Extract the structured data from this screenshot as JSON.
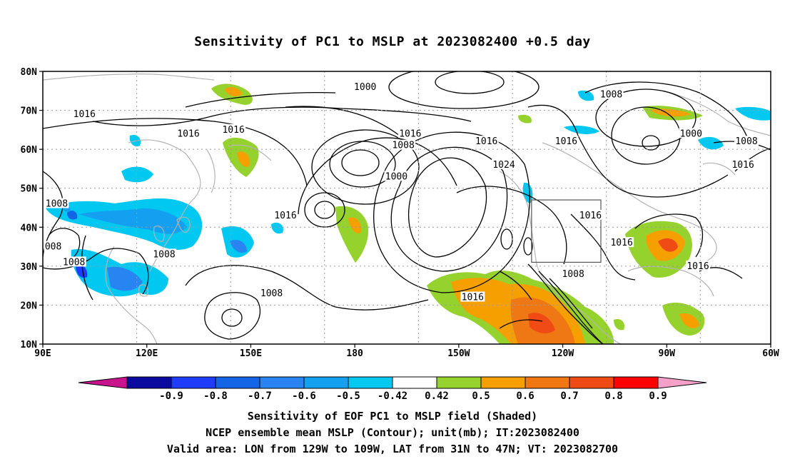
{
  "title": "Sensitivity of PC1 to MSLP at 2023082400 +0.5 day",
  "map": {
    "lat_labels": [
      "80N",
      "70N",
      "60N",
      "50N",
      "40N",
      "30N",
      "20N",
      "10N"
    ],
    "lon_labels": [
      "90E",
      "120E",
      "150E",
      "180",
      "150W",
      "120W",
      "90W",
      "60W"
    ],
    "extent": {
      "lon_min": 90,
      "lon_max": 300,
      "lat_min": 10,
      "lat_max": 80
    },
    "valid_box": {
      "lon": [
        231,
        251
      ],
      "lat": [
        31,
        47
      ]
    },
    "contour_labels": [
      {
        "text": "1000",
        "lon": 183,
        "lat": 76
      },
      {
        "text": "1008",
        "lon": 254,
        "lat": 74
      },
      {
        "text": "1016",
        "lon": 102,
        "lat": 69
      },
      {
        "text": "1016",
        "lon": 132,
        "lat": 64
      },
      {
        "text": "1016",
        "lon": 145,
        "lat": 65
      },
      {
        "text": "1016",
        "lon": 196,
        "lat": 64
      },
      {
        "text": "1008",
        "lon": 194,
        "lat": 61
      },
      {
        "text": "1016",
        "lon": 218,
        "lat": 62
      },
      {
        "text": "1016",
        "lon": 241,
        "lat": 62
      },
      {
        "text": "1000",
        "lon": 277,
        "lat": 64
      },
      {
        "text": "1008",
        "lon": 293,
        "lat": 62
      },
      {
        "text": "1024",
        "lon": 223,
        "lat": 56
      },
      {
        "text": "1000",
        "lon": 192,
        "lat": 53
      },
      {
        "text": "1016",
        "lon": 292,
        "lat": 56
      },
      {
        "text": "1008",
        "lon": 94,
        "lat": 46
      },
      {
        "text": "1016",
        "lon": 160,
        "lat": 43
      },
      {
        "text": "1016",
        "lon": 248,
        "lat": 43
      },
      {
        "text": "1016",
        "lon": 257,
        "lat": 36
      },
      {
        "text": "008",
        "lon": 93,
        "lat": 35
      },
      {
        "text": "1008",
        "lon": 99,
        "lat": 31
      },
      {
        "text": "1008",
        "lon": 125,
        "lat": 33
      },
      {
        "text": "1016",
        "lon": 279,
        "lat": 30
      },
      {
        "text": "1008",
        "lon": 243,
        "lat": 28
      },
      {
        "text": "1016",
        "lon": 214,
        "lat": 22
      },
      {
        "text": "1008",
        "lon": 156,
        "lat": 23
      }
    ]
  },
  "colorbar": {
    "labels": [
      "-0.9",
      "-0.8",
      "-0.7",
      "-0.6",
      "-0.5",
      "-0.42",
      "0.42",
      "0.5",
      "0.6",
      "0.7",
      "0.8",
      "0.9"
    ],
    "colors": [
      "#0a0aa0",
      "#1e3cff",
      "#1464e6",
      "#2884f0",
      "#14a0f0",
      "#00c8f0",
      "#ffffff",
      "#96d22d",
      "#f5a000",
      "#f07814",
      "#f04b14",
      "#ff0000"
    ],
    "low_arrow_color": "#c8148c",
    "high_arrow_color": "#f4a0c8"
  },
  "captions": {
    "line1": "Sensitivity of EOF PC1 to MSLP field (Shaded)",
    "line2": "NCEP ensemble mean MSLP (Contour); unit(mb); IT:2023082400",
    "line3": "Valid area: LON from 129W to 109W, LAT from 31N to 47N; VT: 2023082700"
  }
}
